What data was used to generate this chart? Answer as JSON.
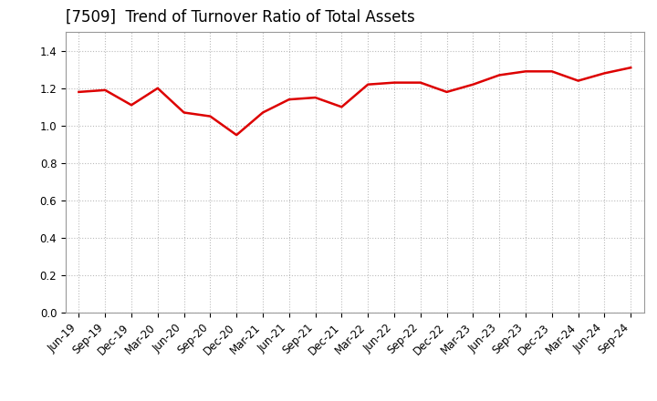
{
  "title": "[7509]  Trend of Turnover Ratio of Total Assets",
  "x_labels": [
    "Jun-19",
    "Sep-19",
    "Dec-19",
    "Mar-20",
    "Jun-20",
    "Sep-20",
    "Dec-20",
    "Mar-21",
    "Jun-21",
    "Sep-21",
    "Dec-21",
    "Mar-22",
    "Jun-22",
    "Sep-22",
    "Dec-22",
    "Mar-23",
    "Jun-23",
    "Sep-23",
    "Dec-23",
    "Mar-24",
    "Jun-24",
    "Sep-24"
  ],
  "values": [
    1.18,
    1.19,
    1.11,
    1.2,
    1.07,
    1.05,
    0.95,
    1.07,
    1.14,
    1.15,
    1.1,
    1.22,
    1.23,
    1.23,
    1.18,
    1.22,
    1.27,
    1.29,
    1.29,
    1.24,
    1.28,
    1.31
  ],
  "line_color": "#dd0000",
  "line_width": 1.8,
  "ylim": [
    0.0,
    1.5
  ],
  "yticks": [
    0.0,
    0.2,
    0.4,
    0.6,
    0.8,
    1.0,
    1.2,
    1.4
  ],
  "background_color": "#ffffff",
  "plot_bg_color": "#ffffff",
  "grid_color": "#bbbbbb",
  "title_fontsize": 12,
  "tick_fontsize": 8.5
}
